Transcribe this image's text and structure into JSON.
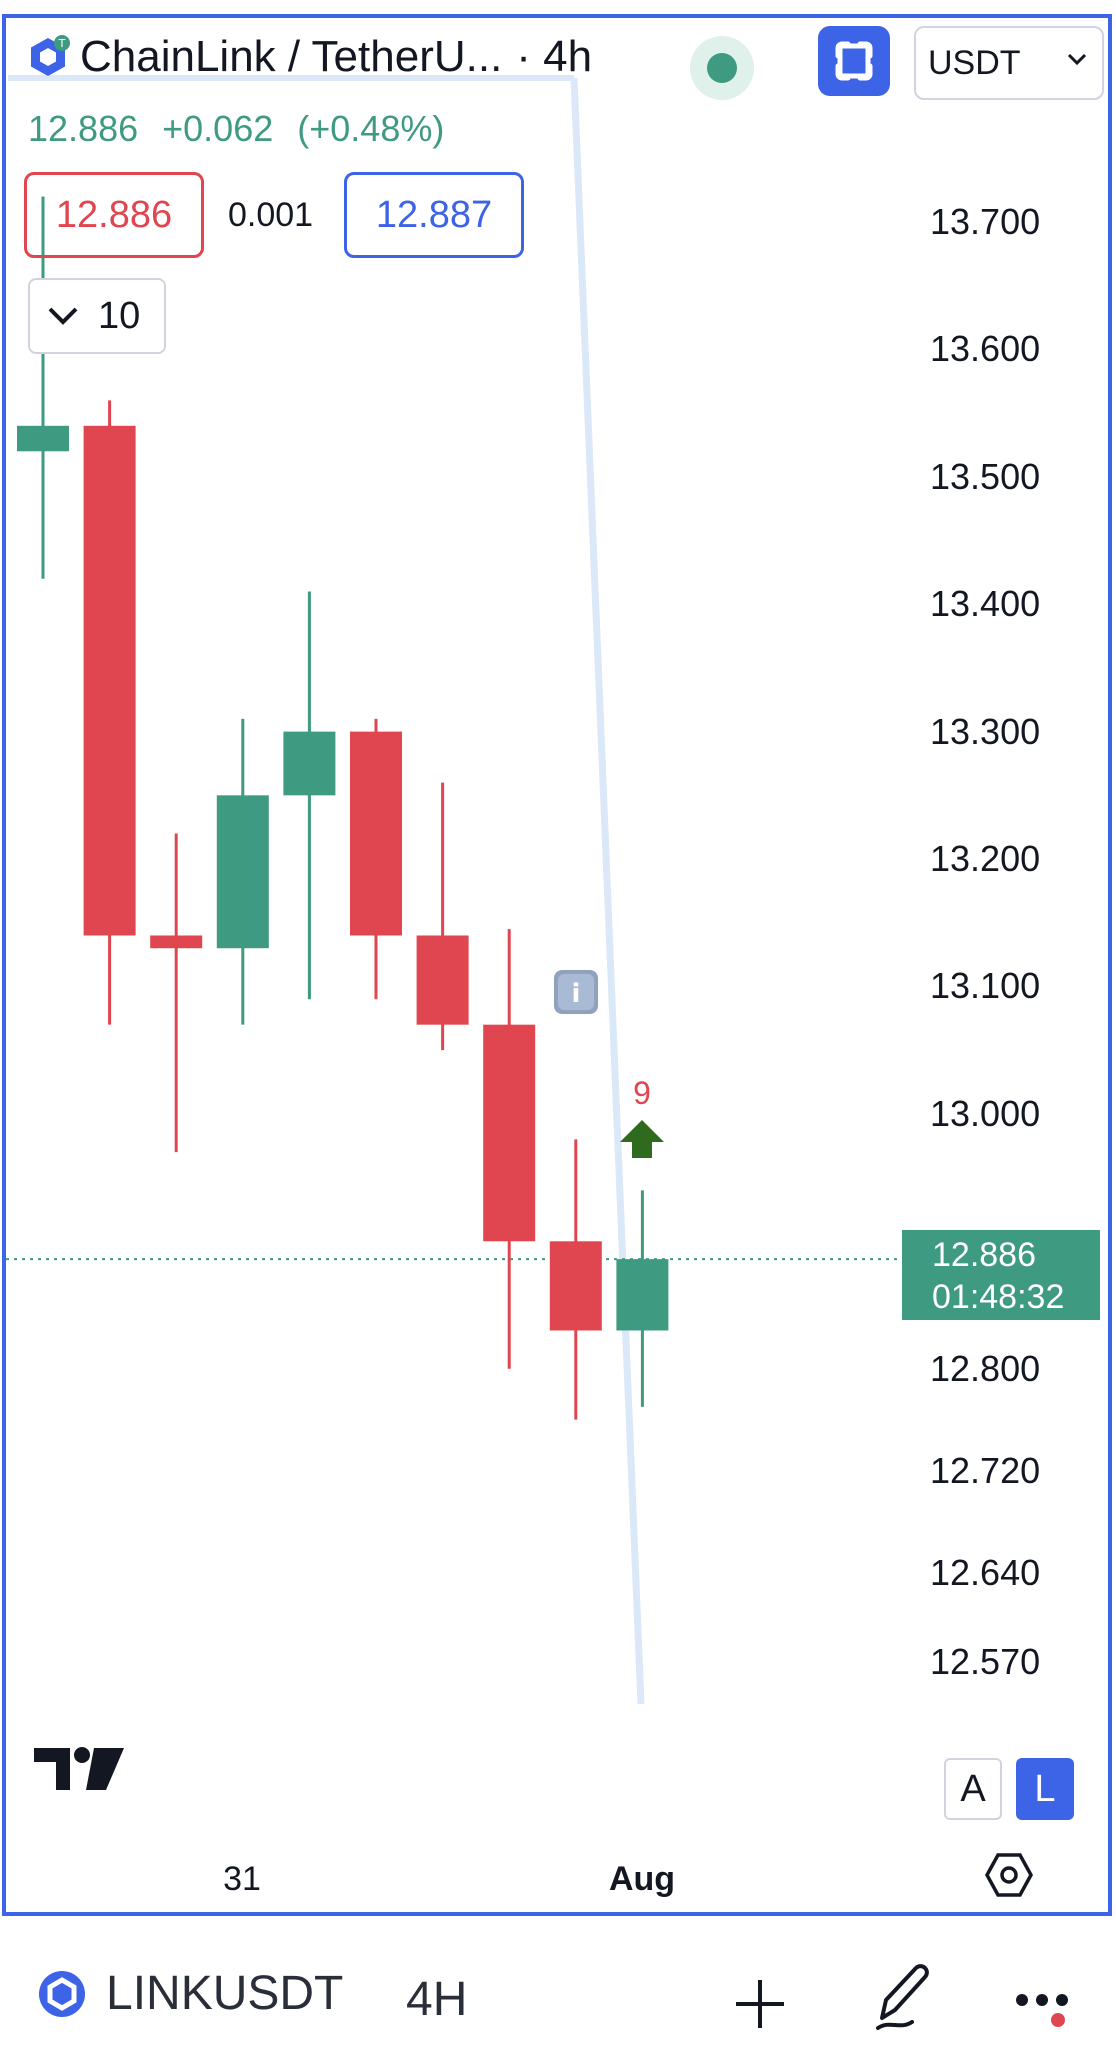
{
  "header": {
    "title": "ChainLink / TetherU...",
    "interval": "· 4h",
    "currency": "USDT"
  },
  "price_line": {
    "last": "12.886",
    "change": "+0.062",
    "change_pct": "(+0.48%)"
  },
  "quote": {
    "bid": "12.886",
    "spread": "0.001",
    "ask": "12.887"
  },
  "indicator_toggle": {
    "count": "10"
  },
  "price_axis": [
    "13.700",
    "13.600",
    "13.500",
    "13.400",
    "13.300",
    "13.200",
    "13.100",
    "13.000",
    "12.800",
    "12.720",
    "12.640",
    "12.570"
  ],
  "last_price_tag": {
    "price": "12.886",
    "countdown": "01:48:32"
  },
  "time_axis": [
    "31",
    "Aug"
  ],
  "annotations": {
    "count_label": "9"
  },
  "scale_buttons": {
    "auto": "A",
    "log": "L"
  },
  "bottom_bar": {
    "symbol": "LINKUSDT",
    "interval": "4H"
  },
  "colors": {
    "up": "#3f9a82",
    "down": "#e0464f",
    "accent": "#3d63e6"
  },
  "chart_data": {
    "type": "candlestick",
    "ylim": [
      12.54,
      13.78
    ],
    "candles": [
      {
        "o": 13.52,
        "h": 13.72,
        "l": 13.42,
        "c": 13.54
      },
      {
        "o": 13.54,
        "h": 13.56,
        "l": 13.07,
        "c": 13.14
      },
      {
        "o": 13.14,
        "h": 13.22,
        "l": 12.97,
        "c": 13.13
      },
      {
        "o": 13.13,
        "h": 13.31,
        "l": 13.07,
        "c": 13.25
      },
      {
        "o": 13.25,
        "h": 13.41,
        "l": 13.09,
        "c": 13.3
      },
      {
        "o": 13.3,
        "h": 13.31,
        "l": 13.09,
        "c": 13.14
      },
      {
        "o": 13.14,
        "h": 13.26,
        "l": 13.05,
        "c": 13.07
      },
      {
        "o": 13.07,
        "h": 13.145,
        "l": 12.8,
        "c": 12.9
      },
      {
        "o": 12.9,
        "h": 12.98,
        "l": 12.76,
        "c": 12.83
      },
      {
        "o": 12.83,
        "h": 12.94,
        "l": 12.77,
        "c": 12.886
      }
    ],
    "last_price": 12.886
  }
}
